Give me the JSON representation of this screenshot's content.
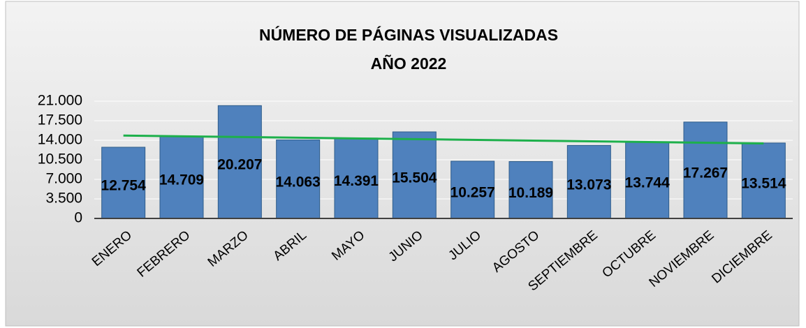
{
  "chart_data": {
    "type": "bar",
    "title": "NÚMERO DE PÁGINAS VISUALIZADAS",
    "subtitle": "AÑO 2022",
    "categories": [
      "ENERO",
      "FEBRERO",
      "MARZO",
      "ABRIL",
      "MAYO",
      "JUNIO",
      "JULIO",
      "AGOSTO",
      "SEPTIEMBRE",
      "OCTUBRE",
      "NOVIEMBRE",
      "DICIEMBRE"
    ],
    "values": [
      12754,
      14709,
      20207,
      14063,
      14391,
      15504,
      10257,
      10189,
      13073,
      13744,
      17267,
      13514
    ],
    "value_labels": [
      "12.754",
      "14.709",
      "20.207",
      "14.063",
      "14.391",
      "15.504",
      "10.257",
      "10.189",
      "13.073",
      "13.744",
      "17.267",
      "13.514"
    ],
    "color": "#4f81bd",
    "trendline": true,
    "trendline_color": "#1db04b",
    "ylim": [
      0,
      21000
    ],
    "yticks": [
      0,
      {
        "value": 3500,
        "label": "3.500"
      },
      {
        "value": 7000,
        "label": "7.000"
      },
      {
        "value": 10500,
        "label": "10.500"
      },
      {
        "value": 14000,
        "label": "14.000"
      },
      {
        "value": 17500,
        "label": "17.500"
      },
      {
        "value": 21000,
        "label": "21.000"
      }
    ],
    "grid": true
  }
}
